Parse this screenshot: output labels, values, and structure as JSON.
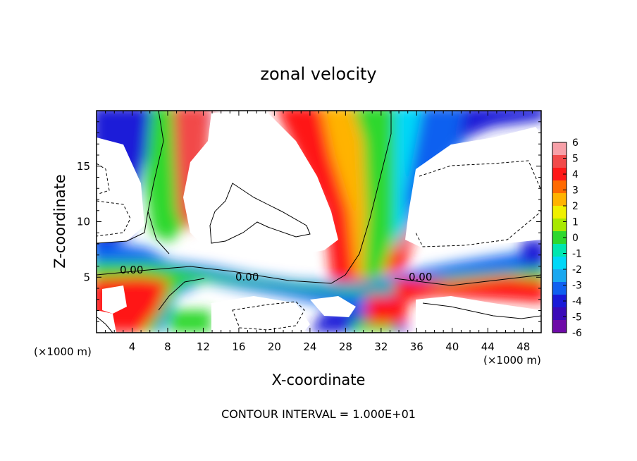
{
  "chart_data": {
    "type": "heatmap",
    "title": "zonal velocity",
    "xlabel": "X-coordinate",
    "ylabel": "Z-coordinate",
    "x_unit_label_left": "(×1000 m)",
    "x_unit_label_right": "(×1000 m)",
    "footer": "CONTOUR INTERVAL = 1.000E+01",
    "xlim": [
      0,
      50
    ],
    "ylim": [
      0,
      20
    ],
    "x_ticks": [
      4,
      8,
      12,
      16,
      20,
      24,
      28,
      32,
      36,
      40,
      44,
      48
    ],
    "y_ticks": [
      5,
      10,
      15
    ],
    "contour_labels": [
      "0.00",
      "0.00",
      "0.00"
    ],
    "colorbar": {
      "ticks": [
        6,
        5,
        4,
        3,
        2,
        1,
        0,
        -1,
        -2,
        -3,
        -4,
        -5,
        -6
      ],
      "range": [
        -6,
        6
      ],
      "colors": [
        "#f7a0a8",
        "#f24a4a",
        "#ff1818",
        "#ff6a00",
        "#ffb300",
        "#f0f000",
        "#a8e800",
        "#2ed82e",
        "#00e6b0",
        "#00d8f8",
        "#19a8f0",
        "#1060f0",
        "#1a1ad8",
        "#3a0ab8",
        "#6e0aa8"
      ]
    }
  }
}
